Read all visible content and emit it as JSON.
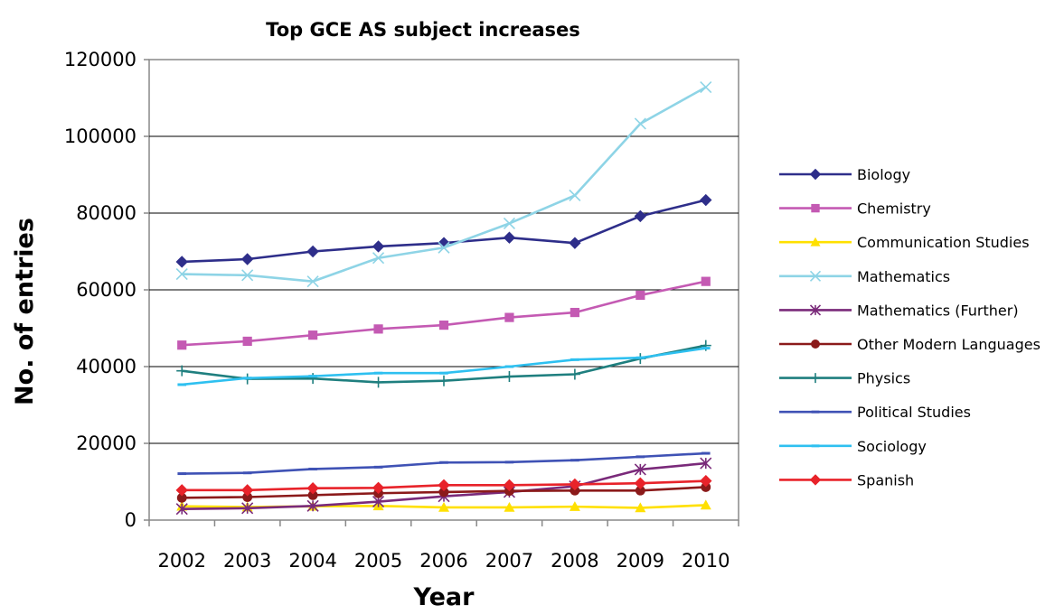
{
  "chart_data": {
    "type": "line",
    "title": "Top GCE AS subject increases",
    "xlabel": "Year",
    "ylabel": "No. of entries",
    "categories": [
      "2002",
      "2003",
      "2004",
      "2005",
      "2006",
      "2007",
      "2008",
      "2009",
      "2010"
    ],
    "ylim": [
      0,
      120000
    ],
    "yticks": [
      "0",
      "20000",
      "40000",
      "60000",
      "80000",
      "100000",
      "120000"
    ],
    "grid": "horizontal",
    "legend_position": "right",
    "series": [
      {
        "name": "Biology",
        "color": "#2e2e8a",
        "marker": "diamond",
        "values": [
          67300,
          68000,
          70000,
          71300,
          72200,
          73600,
          72200,
          79200,
          83400
        ]
      },
      {
        "name": "Chemistry",
        "color": "#c45ab3",
        "marker": "square",
        "values": [
          45600,
          46600,
          48200,
          49800,
          50800,
          52800,
          54100,
          58600,
          62200
        ]
      },
      {
        "name": "Communication Studies",
        "color": "#ffe000",
        "marker": "triangle",
        "values": [
          3600,
          3400,
          3600,
          3700,
          3300,
          3300,
          3500,
          3200,
          3900
        ]
      },
      {
        "name": "Mathematics",
        "color": "#8ed4e6",
        "marker": "x",
        "values": [
          64100,
          63800,
          62200,
          68300,
          71000,
          77300,
          84600,
          103300,
          112800
        ]
      },
      {
        "name": "Mathematics (Further)",
        "color": "#7a2a7a",
        "marker": "star",
        "values": [
          2900,
          3100,
          3700,
          4800,
          6200,
          7300,
          8800,
          13200,
          14800
        ]
      },
      {
        "name": "Other Modern Languages",
        "color": "#8b1a1a",
        "marker": "circle",
        "values": [
          5800,
          6000,
          6500,
          7000,
          7300,
          7600,
          7700,
          7700,
          8600
        ]
      },
      {
        "name": "Physics",
        "color": "#1f7f7f",
        "marker": "plus",
        "values": [
          38900,
          36800,
          36900,
          35900,
          36300,
          37400,
          38000,
          42100,
          45500
        ]
      },
      {
        "name": "Political Studies",
        "color": "#3f52b5",
        "marker": "dash",
        "values": [
          12100,
          12300,
          13300,
          13800,
          15000,
          15100,
          15600,
          16500,
          17400
        ]
      },
      {
        "name": "Sociology",
        "color": "#2ec0f0",
        "marker": "dash",
        "values": [
          35300,
          37000,
          37500,
          38300,
          38300,
          40000,
          41800,
          42300,
          44800
        ]
      },
      {
        "name": "Spanish",
        "color": "#e8232a",
        "marker": "diamond",
        "values": [
          7800,
          7800,
          8300,
          8400,
          9100,
          9100,
          9300,
          9600,
          10200
        ]
      }
    ]
  }
}
